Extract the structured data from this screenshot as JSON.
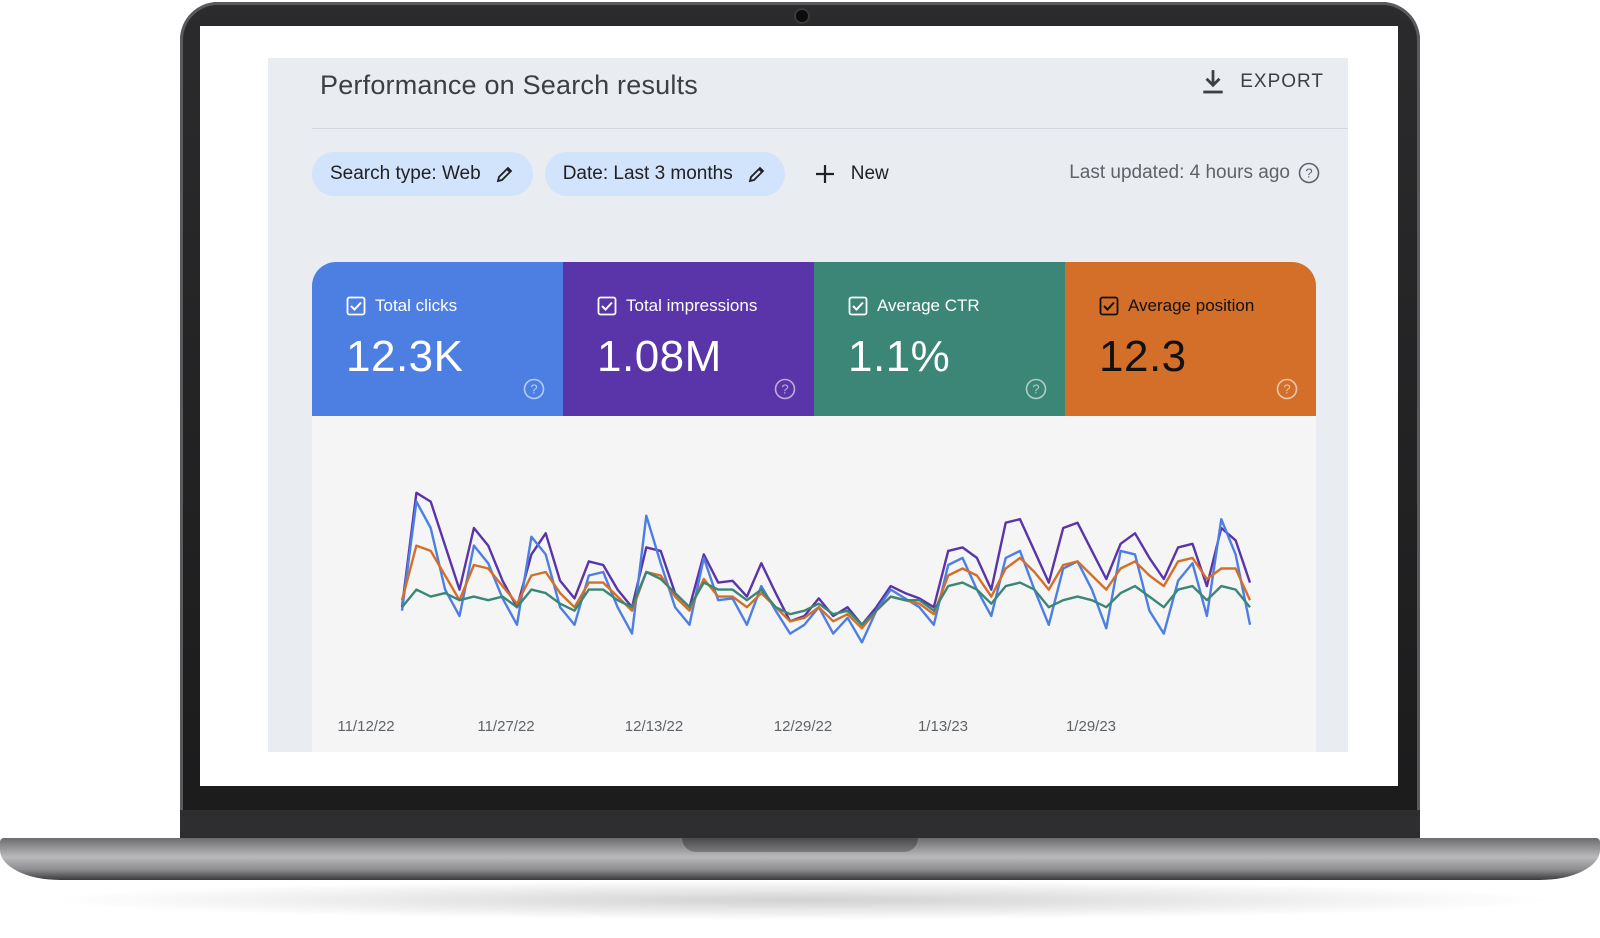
{
  "header": {
    "title": "Performance on Search results",
    "export_label": "EXPORT"
  },
  "filters": {
    "search_type": "Search type: Web",
    "date": "Date: Last 3 months",
    "new_label": "New",
    "last_updated": "Last updated: 4 hours ago"
  },
  "metrics": [
    {
      "label": "Total clicks",
      "value": "12.3K",
      "color": "#4d7fe3"
    },
    {
      "label": "Total impressions",
      "value": "1.08M",
      "color": "#5a34a9"
    },
    {
      "label": "Average CTR",
      "value": "1.1%",
      "color": "#3b8676"
    },
    {
      "label": "Average position",
      "value": "12.3",
      "color": "#d46f29"
    }
  ],
  "chart_data": {
    "type": "line",
    "x_ticks": [
      "11/12/22",
      "11/27/22",
      "12/13/22",
      "12/29/22",
      "1/13/23",
      "1/29/23"
    ],
    "ylim": [
      0,
      100
    ],
    "grid": false,
    "legend": "none",
    "series": [
      {
        "color": "#5a34a9",
        "values": [
          30,
          95,
          90,
          65,
          40,
          75,
          65,
          45,
          30,
          60,
          72,
          45,
          35,
          56,
          54,
          40,
          30,
          64,
          62,
          38,
          30,
          60,
          44,
          45,
          36,
          55,
          38,
          22,
          25,
          35,
          25,
          30,
          20,
          30,
          42,
          38,
          35,
          30,
          62,
          64,
          58,
          40,
          78,
          80,
          62,
          44,
          75,
          78,
          62,
          46,
          66,
          72,
          58,
          46,
          64,
          66,
          42,
          75,
          68,
          44
        ]
      },
      {
        "color": "#4d7fe3",
        "values": [
          28,
          90,
          75,
          40,
          25,
          65,
          55,
          35,
          20,
          70,
          60,
          30,
          20,
          48,
          50,
          30,
          15,
          82,
          55,
          30,
          20,
          58,
          34,
          35,
          20,
          42,
          28,
          15,
          20,
          30,
          15,
          24,
          10,
          28,
          40,
          35,
          30,
          20,
          54,
          58,
          40,
          25,
          58,
          62,
          40,
          20,
          52,
          56,
          40,
          18,
          62,
          60,
          28,
          15,
          45,
          55,
          25,
          80,
          60,
          20
        ]
      },
      {
        "color": "#d46f29",
        "values": [
          34,
          65,
          62,
          48,
          34,
          54,
          52,
          42,
          32,
          48,
          50,
          38,
          30,
          44,
          44,
          36,
          28,
          50,
          48,
          36,
          28,
          46,
          36,
          36,
          30,
          38,
          30,
          22,
          24,
          30,
          22,
          26,
          18,
          28,
          36,
          34,
          32,
          26,
          48,
          52,
          48,
          36,
          52,
          58,
          50,
          40,
          54,
          56,
          48,
          40,
          52,
          56,
          48,
          42,
          56,
          58,
          46,
          52,
          52,
          34
        ]
      },
      {
        "color": "#3b8676",
        "values": [
          30,
          40,
          36,
          38,
          34,
          36,
          34,
          36,
          30,
          40,
          38,
          32,
          28,
          40,
          40,
          34,
          30,
          50,
          46,
          38,
          30,
          44,
          40,
          40,
          34,
          40,
          30,
          26,
          28,
          32,
          26,
          28,
          20,
          28,
          36,
          34,
          34,
          28,
          42,
          44,
          40,
          32,
          42,
          44,
          40,
          30,
          34,
          36,
          34,
          30,
          38,
          42,
          36,
          30,
          40,
          42,
          34,
          42,
          40,
          30
        ]
      }
    ]
  }
}
